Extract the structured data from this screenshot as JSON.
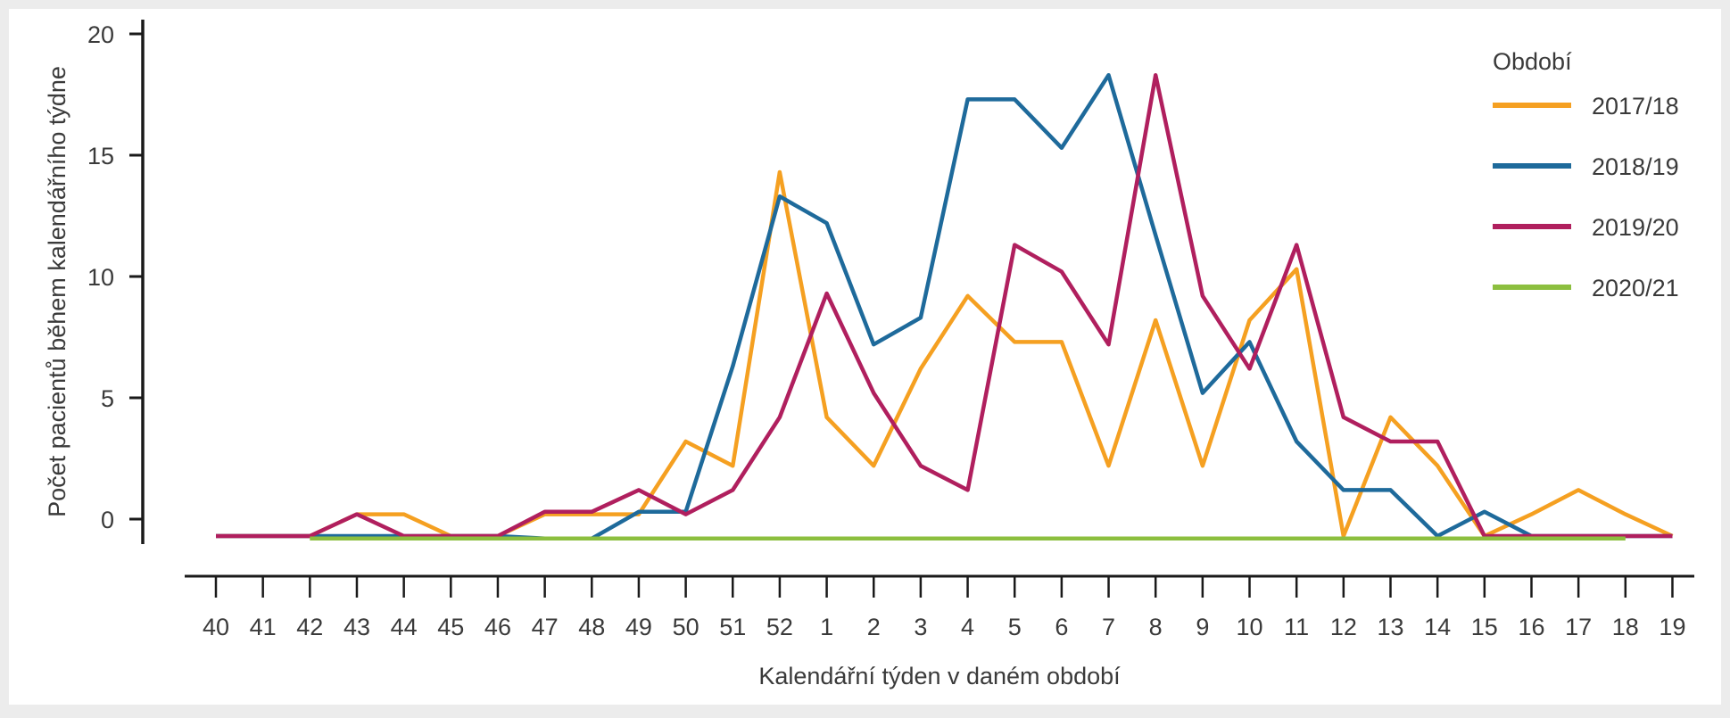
{
  "chart_data": {
    "type": "line",
    "xlabel": "Kalendářní týden v daném období",
    "ylabel": "Počet pacientů během kalendářního týdne",
    "categories": [
      "40",
      "41",
      "42",
      "43",
      "44",
      "45",
      "46",
      "47",
      "48",
      "49",
      "50",
      "51",
      "52",
      "1",
      "2",
      "3",
      "4",
      "5",
      "6",
      "7",
      "8",
      "9",
      "10",
      "11",
      "12",
      "13",
      "14",
      "15",
      "16",
      "17",
      "18",
      "19"
    ],
    "yticks": [
      0,
      5,
      10,
      15,
      20
    ],
    "ylim": [
      -0.85,
      20
    ],
    "grid": false,
    "legend_title": "Období",
    "legend_position": "top-right",
    "series": [
      {
        "name": "2017/18",
        "color": "#f5a021",
        "values": [
          -0.7,
          -0.7,
          -0.7,
          0.2,
          0.2,
          -0.7,
          -0.7,
          0.2,
          0.2,
          0.2,
          3.2,
          2.2,
          14.3,
          4.2,
          2.2,
          6.2,
          9.2,
          7.3,
          7.3,
          2.2,
          8.2,
          2.2,
          8.2,
          10.3,
          -0.7,
          4.2,
          2.2,
          -0.7,
          0.2,
          1.2,
          0.2,
          -0.7
        ]
      },
      {
        "name": "2018/19",
        "color": "#1e6a9b",
        "values": [
          -0.7,
          -0.7,
          -0.7,
          -0.7,
          -0.7,
          -0.7,
          -0.7,
          -0.8,
          -0.8,
          0.3,
          0.3,
          6.3,
          13.3,
          12.2,
          7.2,
          8.3,
          17.3,
          17.3,
          15.3,
          18.3,
          11.7,
          5.2,
          7.3,
          3.2,
          1.2,
          1.2,
          -0.7,
          0.3,
          -0.7,
          -0.7,
          -0.7,
          -0.7
        ]
      },
      {
        "name": "2019/20",
        "color": "#b01f5e",
        "values": [
          -0.7,
          -0.7,
          -0.7,
          0.2,
          -0.7,
          -0.7,
          -0.7,
          0.3,
          0.3,
          1.2,
          0.2,
          1.2,
          4.2,
          9.3,
          5.2,
          2.2,
          1.2,
          11.3,
          10.2,
          7.2,
          18.3,
          9.2,
          6.2,
          11.3,
          4.2,
          3.2,
          3.2,
          -0.7,
          -0.7,
          -0.7,
          -0.7,
          -0.7
        ]
      },
      {
        "name": "2020/21",
        "color": "#8cbf3f",
        "values": [
          null,
          null,
          -0.8,
          -0.8,
          -0.8,
          -0.8,
          -0.8,
          -0.8,
          -0.8,
          -0.8,
          -0.8,
          -0.8,
          -0.8,
          -0.8,
          -0.8,
          -0.8,
          -0.8,
          -0.8,
          -0.8,
          -0.8,
          -0.8,
          -0.8,
          -0.8,
          -0.8,
          -0.8,
          -0.8,
          -0.8,
          -0.8,
          -0.8,
          -0.8,
          -0.8,
          null
        ]
      }
    ]
  }
}
